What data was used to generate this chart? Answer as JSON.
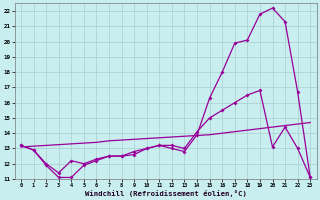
{
  "xlabel": "Windchill (Refroidissement éolien,°C)",
  "background_color": "#c8eef0",
  "line_color": "#990099",
  "grid_color": "#aacccc",
  "xlim": [
    -0.5,
    23.5
  ],
  "ylim": [
    11,
    22.5
  ],
  "xticks": [
    0,
    1,
    2,
    3,
    4,
    5,
    6,
    7,
    8,
    9,
    10,
    11,
    12,
    13,
    14,
    15,
    16,
    17,
    18,
    19,
    20,
    21,
    22,
    23
  ],
  "yticks": [
    11,
    12,
    13,
    14,
    15,
    16,
    17,
    18,
    19,
    20,
    21,
    22
  ],
  "line1_x": [
    0,
    1,
    2,
    3,
    4,
    5,
    6,
    7,
    8,
    9,
    10,
    11,
    12,
    13,
    14,
    15,
    16,
    17,
    18,
    19,
    20,
    21,
    22,
    23
  ],
  "line1_y": [
    13.2,
    12.9,
    11.9,
    11.1,
    11.1,
    11.9,
    12.2,
    12.5,
    12.5,
    12.6,
    13.0,
    13.2,
    13.0,
    12.8,
    13.9,
    16.3,
    18.0,
    19.9,
    20.1,
    21.8,
    22.2,
    21.3,
    16.7,
    11.1
  ],
  "line2_x": [
    0,
    1,
    2,
    3,
    4,
    5,
    6,
    7,
    8,
    9,
    10,
    11,
    12,
    13,
    14,
    15,
    16,
    17,
    18,
    19,
    20,
    21,
    22,
    23
  ],
  "line2_y": [
    13.2,
    12.9,
    12.0,
    11.4,
    12.2,
    12.0,
    12.3,
    12.5,
    12.5,
    12.8,
    13.0,
    13.2,
    13.2,
    13.0,
    14.1,
    15.0,
    15.5,
    16.0,
    16.5,
    16.8,
    13.1,
    14.4,
    13.0,
    11.1
  ],
  "line3_x": [
    0,
    1,
    2,
    3,
    4,
    5,
    6,
    7,
    8,
    9,
    10,
    11,
    12,
    13,
    14,
    15,
    16,
    17,
    18,
    19,
    20,
    21,
    22,
    23
  ],
  "line3_y": [
    13.1,
    13.15,
    13.2,
    13.25,
    13.3,
    13.35,
    13.4,
    13.5,
    13.55,
    13.6,
    13.65,
    13.7,
    13.75,
    13.8,
    13.85,
    13.9,
    14.0,
    14.1,
    14.2,
    14.3,
    14.4,
    14.5,
    14.6,
    14.7
  ]
}
